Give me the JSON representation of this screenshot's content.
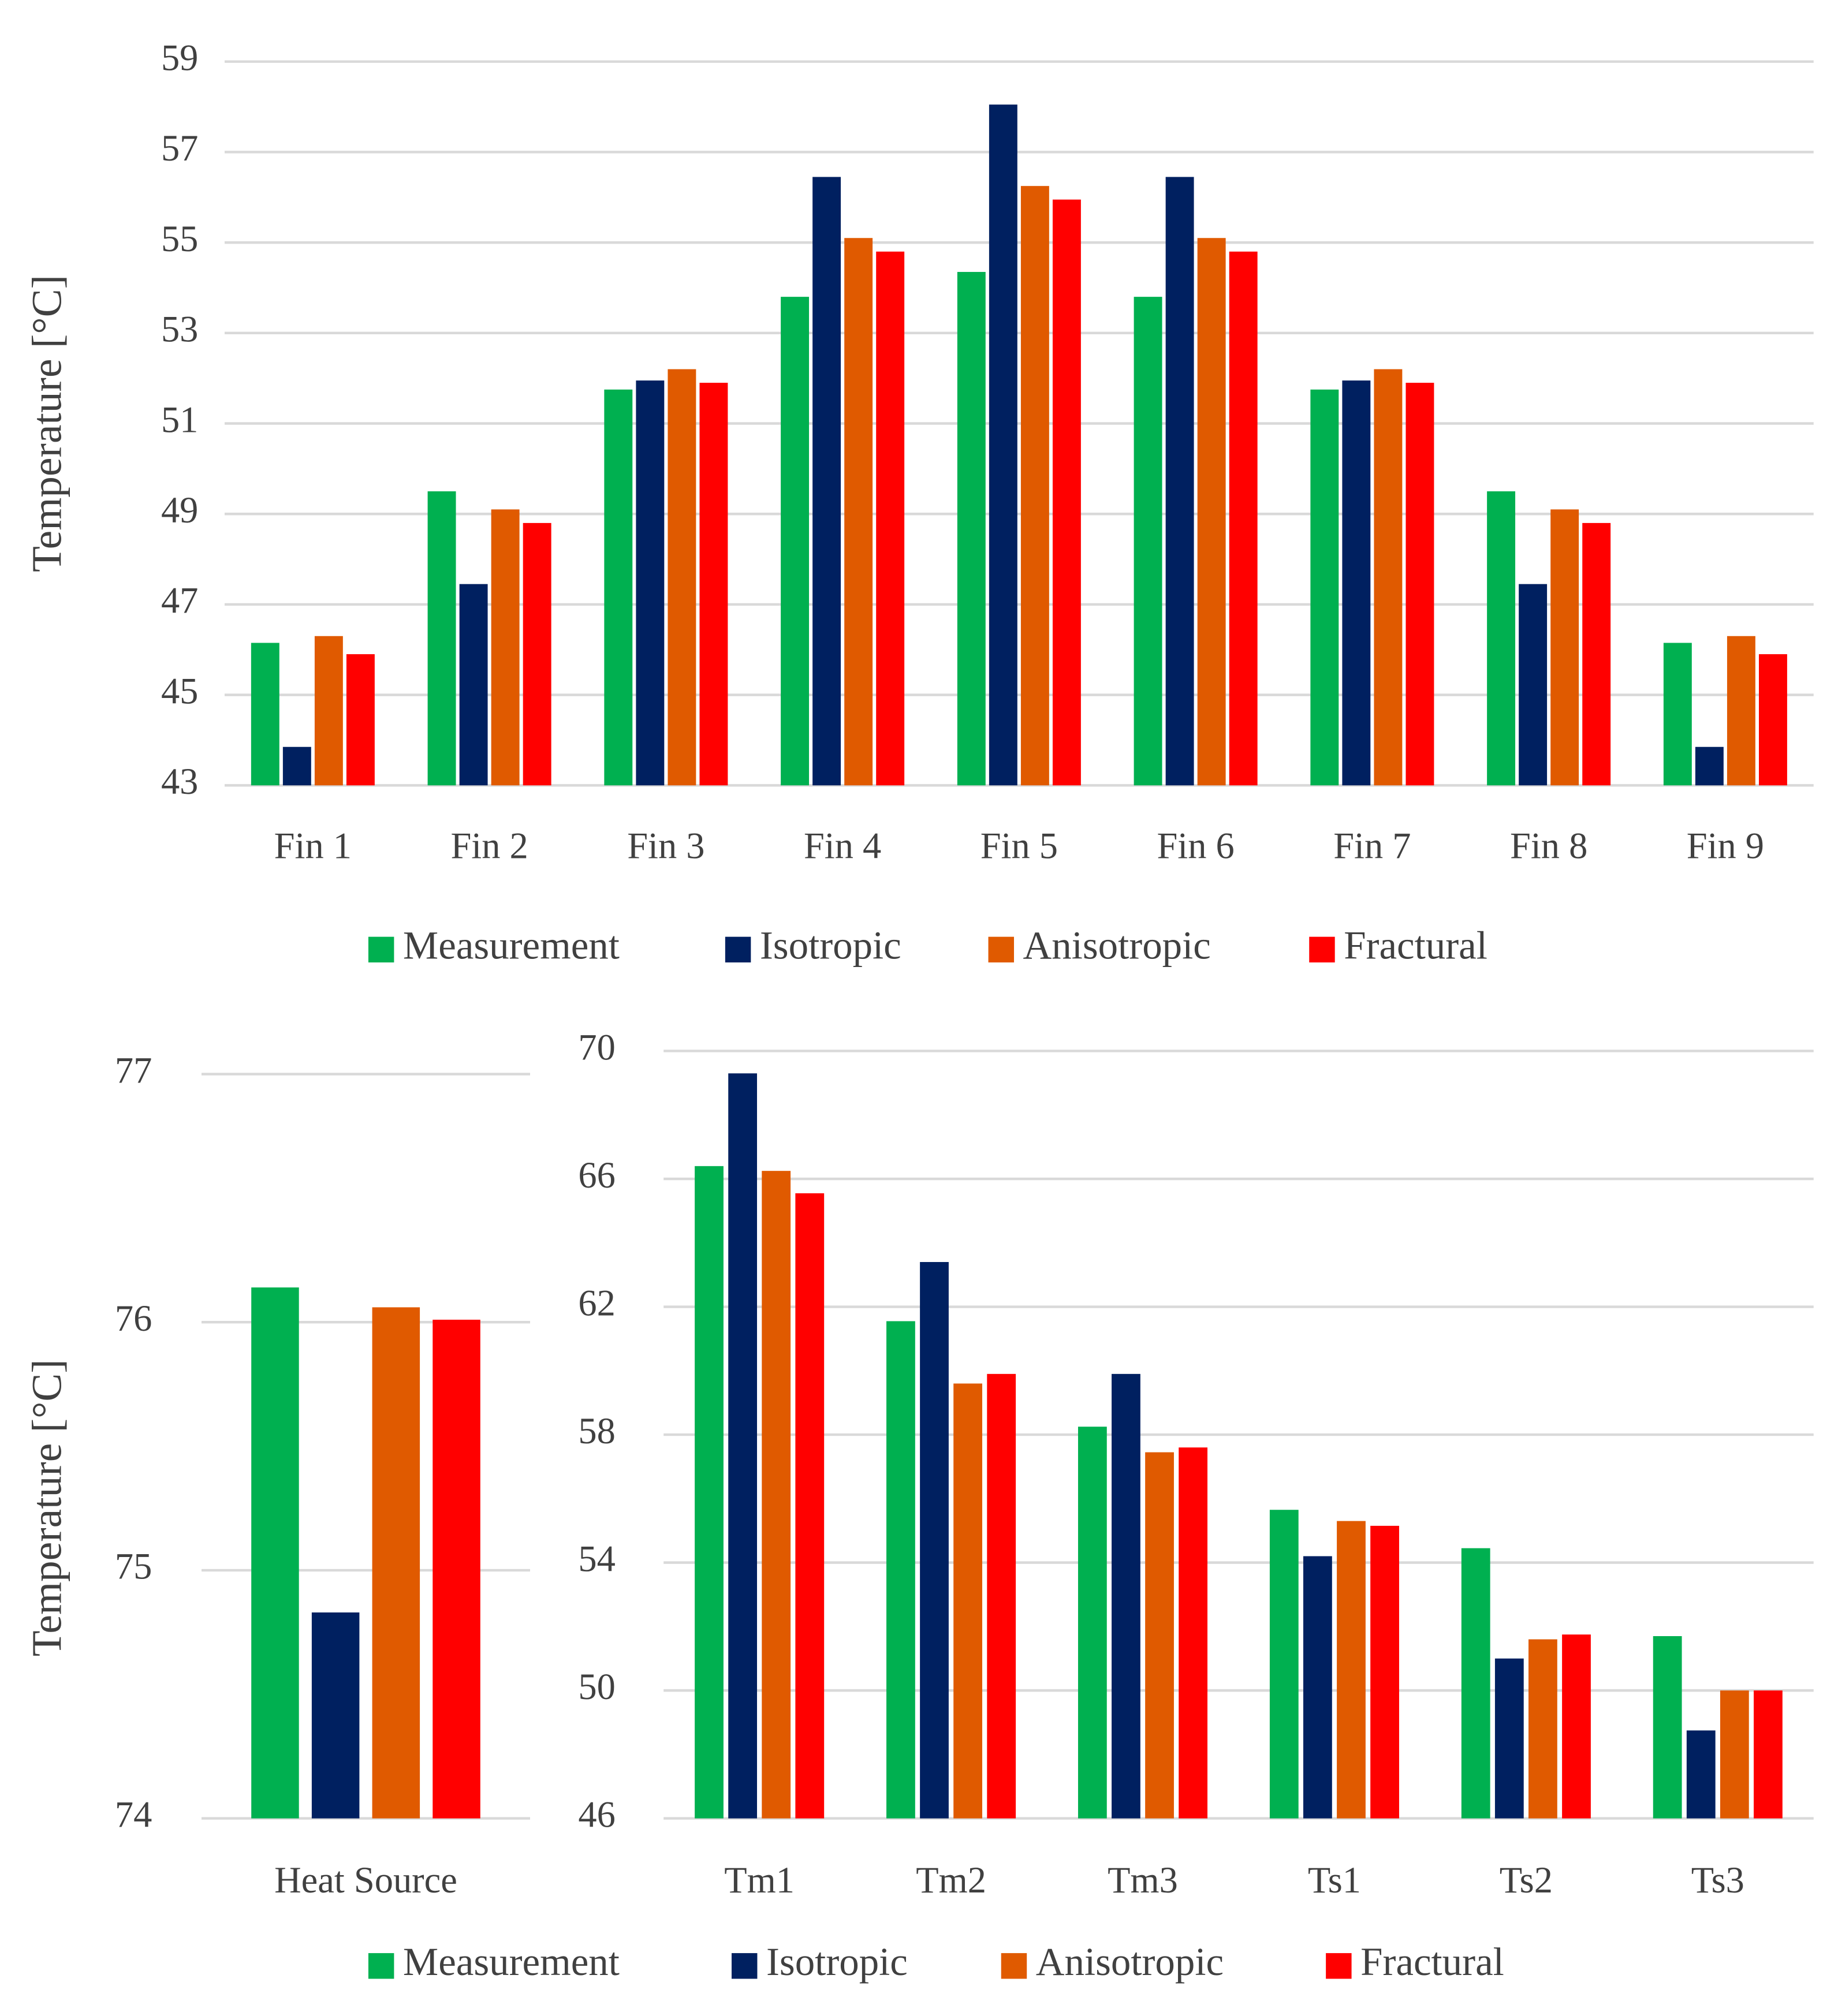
{
  "chart_data": [
    {
      "type": "bar",
      "y_label": "Temperature  [°C]",
      "categories": [
        "Fin 1",
        "Fin 2",
        "Fin 3",
        "Fin 4",
        "Fin 5",
        "Fin 6",
        "Fin 7",
        "Fin 8",
        "Fin 9"
      ],
      "series": [
        {
          "name": "Measurement",
          "color": "#00b050",
          "values": [
            46.15,
            49.5,
            51.75,
            53.8,
            54.35,
            53.8,
            51.75,
            49.5,
            46.15
          ]
        },
        {
          "name": "Isotropic",
          "color": "#002060",
          "values": [
            43.85,
            47.45,
            51.95,
            56.45,
            58.05,
            56.45,
            51.95,
            47.45,
            43.85
          ]
        },
        {
          "name": "Anisotropic",
          "color": "#e05a00",
          "values": [
            46.3,
            49.1,
            52.2,
            55.1,
            56.25,
            55.1,
            52.2,
            49.1,
            46.3
          ]
        },
        {
          "name": "Fractural",
          "color": "#ff0000",
          "values": [
            45.9,
            48.8,
            51.9,
            54.8,
            55.95,
            54.8,
            51.9,
            48.8,
            45.9
          ]
        }
      ],
      "ylim": [
        43,
        59
      ],
      "yticks": [
        43,
        45,
        47,
        49,
        51,
        53,
        55,
        57,
        59
      ],
      "grid": true,
      "legend": "bottom"
    },
    {
      "type": "bar",
      "y_label": "Temperature  [°C]",
      "categories": [
        "Heat Source"
      ],
      "series": [
        {
          "name": "Measurement",
          "color": "#00b050",
          "values": [
            76.14
          ]
        },
        {
          "name": "Isotropic",
          "color": "#002060",
          "values": [
            74.83
          ]
        },
        {
          "name": "Anisotropic",
          "color": "#e05a00",
          "values": [
            76.06
          ]
        },
        {
          "name": "Fractural",
          "color": "#ff0000",
          "values": [
            76.01
          ]
        }
      ],
      "ylim": [
        74,
        77
      ],
      "yticks": [
        74,
        75,
        76,
        77
      ],
      "grid": true,
      "legend": "bottom"
    },
    {
      "type": "bar",
      "categories": [
        "Tm1",
        "Tm2",
        "Tm3",
        "Ts1",
        "Ts2",
        "Ts3"
      ],
      "series": [
        {
          "color": "#00b050",
          "values": [
            66.4,
            61.55,
            58.25,
            55.65,
            54.45,
            51.7
          ]
        },
        {
          "color": "#002060",
          "values": [
            69.3,
            63.4,
            59.9,
            54.2,
            51.0,
            48.75
          ]
        },
        {
          "color": "#e05a00",
          "values": [
            66.25,
            59.6,
            57.45,
            55.3,
            51.6,
            50.0
          ]
        },
        {
          "color": "#ff0000",
          "values": [
            65.55,
            59.9,
            57.6,
            55.15,
            51.75,
            50.0
          ]
        }
      ],
      "ylim": [
        46,
        70
      ],
      "yticks": [
        46,
        50,
        54,
        58,
        62,
        66,
        70
      ],
      "grid": true
    }
  ]
}
